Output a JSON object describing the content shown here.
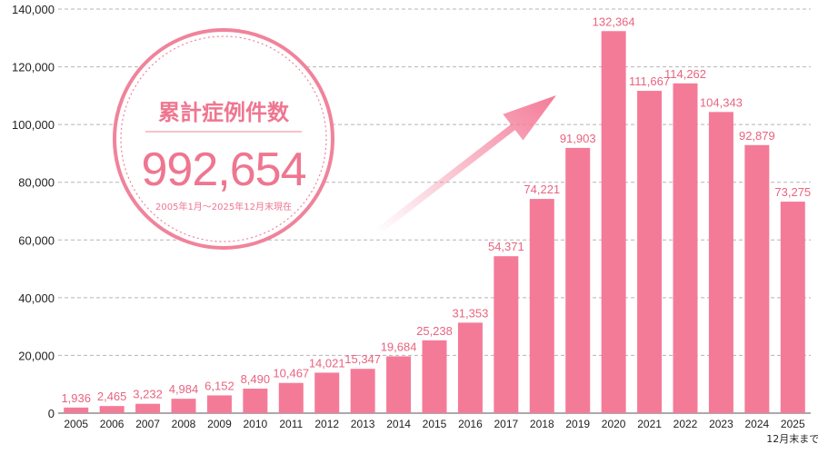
{
  "chart_data": {
    "type": "bar",
    "categories": [
      "2005",
      "2006",
      "2007",
      "2008",
      "2009",
      "2010",
      "2011",
      "2012",
      "2013",
      "2014",
      "2015",
      "2016",
      "2017",
      "2018",
      "2019",
      "2020",
      "2021",
      "2022",
      "2023",
      "2024",
      "2025"
    ],
    "values": [
      1936,
      2465,
      3232,
      4984,
      6152,
      8490,
      10467,
      14021,
      15347,
      19684,
      25238,
      31353,
      54371,
      74221,
      91903,
      132364,
      111667,
      114262,
      104343,
      92879,
      73275
    ],
    "value_labels": [
      "1,936",
      "2,465",
      "3,232",
      "4,984",
      "6,152",
      "8,490",
      "10,467",
      "14,021",
      "15,347",
      "19,684",
      "25,238",
      "31,353",
      "54,371",
      "74,221",
      "91,903",
      "132,364",
      "111,667",
      "114,262",
      "104,343",
      "92,879",
      "73,275"
    ],
    "y_ticks": [
      0,
      20000,
      40000,
      60000,
      80000,
      100000,
      120000,
      140000
    ],
    "y_tick_labels": [
      "0",
      "20,000",
      "40,000",
      "60,000",
      "80,000",
      "100,000",
      "120,000",
      "140,000"
    ],
    "ylim": [
      0,
      140000
    ],
    "grid": true,
    "bar_color": "#f47b98",
    "label_color": "#e8647f",
    "last_category_note": "12月末まで",
    "title": "",
    "xlabel": "",
    "ylabel": ""
  },
  "badge": {
    "title": "累計症例件数",
    "value": "992,654",
    "period": "2005年1月～2025年12月末現在",
    "color": "#ef7690"
  },
  "arrow": {
    "direction": "up-right"
  }
}
